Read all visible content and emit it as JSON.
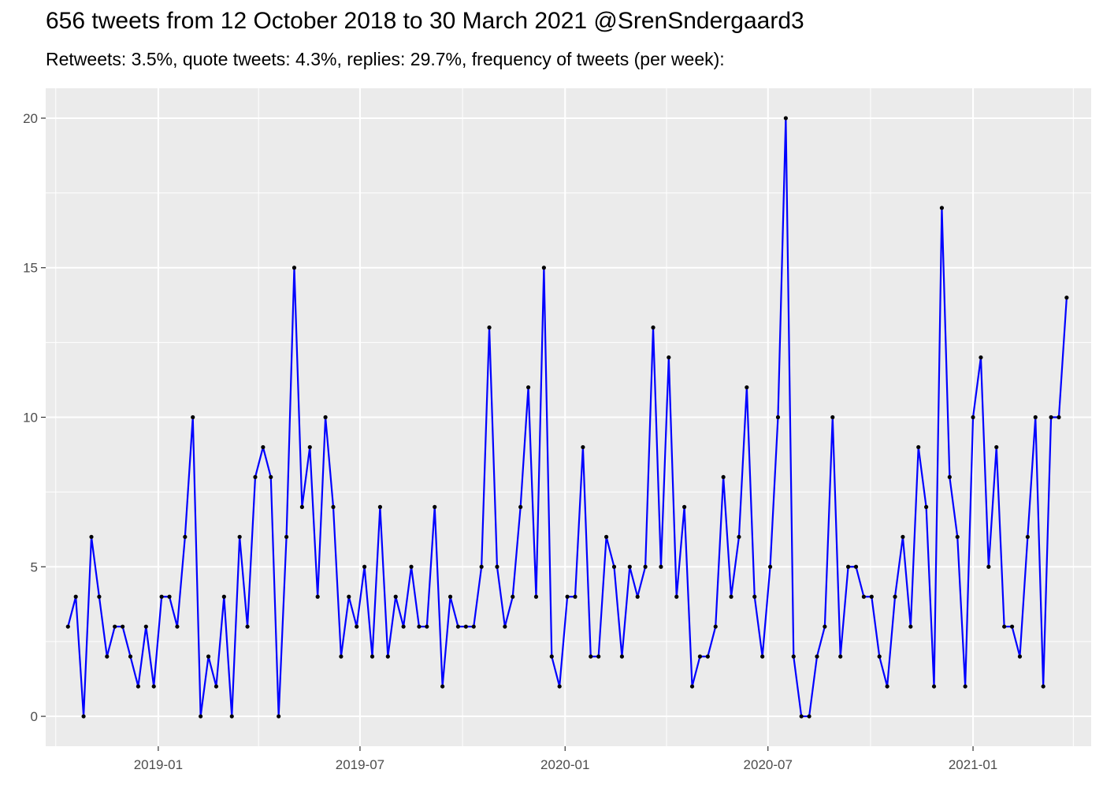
{
  "title": "656 tweets from 12 October 2018 to 30 March 2021 @SrenSndergaard3",
  "subtitle": "Retweets: 3.5%, quote tweets: 4.3%, replies: 29.7%, frequency of tweets (per week):",
  "colors": {
    "panel": "#ebebeb",
    "grid_major": "#ffffff",
    "line": "#0000ff",
    "point": "#000000"
  },
  "chart_data": {
    "type": "line",
    "title": "656 tweets from 12 October 2018 to 30 March 2021 @SrenSndergaard3",
    "subtitle": "Retweets: 3.5%, quote tweets: 4.3%, replies: 29.7%, frequency of tweets (per week):",
    "xlabel": "",
    "ylabel": "",
    "x_axis_type": "date",
    "xlim": [
      "2018-09-22",
      "2021-04-17"
    ],
    "ylim": [
      -1,
      21
    ],
    "grid": true,
    "x_ticks": [
      "2019-01",
      "2019-07",
      "2020-01",
      "2020-07",
      "2021-01"
    ],
    "x_tick_dates": [
      "2019-01-01",
      "2019-07-01",
      "2020-01-01",
      "2020-07-01",
      "2021-01-01"
    ],
    "x_minor_dates": [
      "2018-10-01",
      "2019-04-01",
      "2019-10-01",
      "2020-04-01",
      "2020-10-01",
      "2021-04-01"
    ],
    "y_ticks": [
      0,
      5,
      10,
      15,
      20
    ],
    "series": [
      {
        "start_date": "2018-10-12",
        "step_days": 7,
        "values": [
          3,
          4,
          0,
          6,
          4,
          2,
          3,
          3,
          2,
          1,
          3,
          1,
          4,
          4,
          3,
          6,
          10,
          0,
          2,
          1,
          4,
          0,
          6,
          3,
          8,
          9,
          8,
          0,
          6,
          15,
          7,
          9,
          4,
          10,
          7,
          2,
          4,
          3,
          5,
          2,
          7,
          2,
          4,
          3,
          5,
          3,
          3,
          7,
          1,
          4,
          3,
          3,
          3,
          5,
          13,
          5,
          3,
          4,
          7,
          11,
          4,
          15,
          2,
          1,
          4,
          4,
          9,
          2,
          2,
          6,
          5,
          2,
          5,
          4,
          5,
          13,
          5,
          12,
          4,
          7,
          1,
          2,
          2,
          3,
          8,
          4,
          6,
          11,
          4,
          2,
          5,
          10,
          20,
          2,
          0,
          0,
          2,
          3,
          10,
          2,
          5,
          5,
          4,
          4,
          2,
          1,
          4,
          6,
          3,
          9,
          7,
          1,
          17,
          8,
          6,
          1,
          10,
          12,
          5,
          9,
          3,
          3,
          2,
          6,
          10,
          1,
          10,
          10,
          14
        ]
      }
    ]
  }
}
